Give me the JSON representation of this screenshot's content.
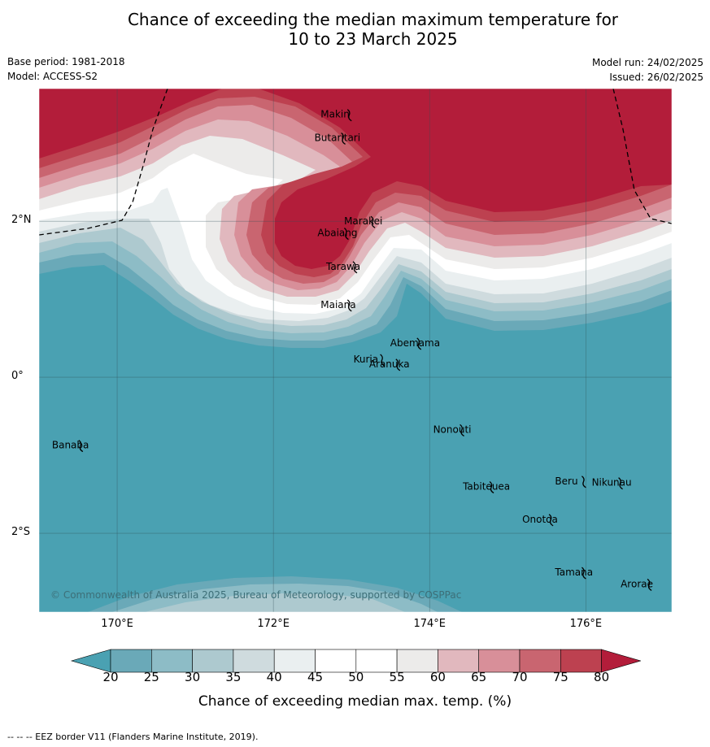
{
  "title_line1": "Chance of exceeding the median maximum temperature for",
  "title_line2": "10 to 23 March 2025",
  "base_period": "Base period: 1981-2018",
  "model": "Model: ACCESS-S2",
  "model_run": "Model run: 24/02/2025",
  "issued": "Issued: 26/02/2025",
  "copyright": "© Commonwealth of Australia 2025, Bureau of Meteorology, supported by COSPPac",
  "footer": "--  --  -- EEZ border V11 (Flanders Marine Institute, 2019).",
  "colorbar_title": "Chance of exceeding median max. temp. (%)",
  "map_extent": {
    "lon": [
      169.0,
      177.1
    ],
    "lat": [
      -3.01,
      3.7
    ]
  },
  "lat_ticks": [
    {
      "v": 2,
      "label": "2°N"
    },
    {
      "v": 0,
      "label": "0°"
    },
    {
      "v": -2,
      "label": "2°S"
    }
  ],
  "lon_ticks": [
    {
      "v": 170,
      "label": "170°E"
    },
    {
      "v": 172,
      "label": "172°E"
    },
    {
      "v": 174,
      "label": "174°E"
    },
    {
      "v": 176,
      "label": "176°E"
    }
  ],
  "colorbar": {
    "ticks": [
      "20",
      "25",
      "30",
      "35",
      "40",
      "45",
      "50",
      "55",
      "60",
      "65",
      "70",
      "75",
      "80"
    ],
    "colors": [
      "#6aa9b8",
      "#8dbcc6",
      "#adc9cf",
      "#cfdbde",
      "#eaeff0",
      "#ffffff",
      "#ffffff",
      "#ecebea",
      "#e1b8be",
      "#d88f99",
      "#c96570",
      "#bd4150"
    ],
    "under": "#4aa1b2",
    "over": "#b31d3a"
  },
  "islands": [
    {
      "name": "Makin",
      "lon": 172.98,
      "lat": 3.37
    },
    {
      "name": "Butaritari",
      "lon": 172.9,
      "lat": 3.07
    },
    {
      "name": "Marakei",
      "lon": 173.28,
      "lat": 2.0
    },
    {
      "name": "Abaiang",
      "lon": 172.94,
      "lat": 1.85
    },
    {
      "name": "Tarawa",
      "lon": 173.05,
      "lat": 1.42
    },
    {
      "name": "Maiana",
      "lon": 172.98,
      "lat": 0.93
    },
    {
      "name": "Abemama",
      "lon": 173.87,
      "lat": 0.44
    },
    {
      "name": "Kuria",
      "lon": 173.4,
      "lat": 0.23
    },
    {
      "name": "Aranuka",
      "lon": 173.6,
      "lat": 0.17
    },
    {
      "name": "Nonouti",
      "lon": 174.42,
      "lat": -0.67
    },
    {
      "name": "Banaba",
      "lon": 169.54,
      "lat": -0.87
    },
    {
      "name": "Tabiteuea",
      "lon": 174.8,
      "lat": -1.4
    },
    {
      "name": "Beru",
      "lon": 175.98,
      "lat": -1.33
    },
    {
      "name": "Nikunau",
      "lon": 176.45,
      "lat": -1.35
    },
    {
      "name": "Onotoa",
      "lon": 175.56,
      "lat": -1.82
    },
    {
      "name": "Tamana",
      "lon": 175.98,
      "lat": -2.5
    },
    {
      "name": "Arorae",
      "lon": 176.82,
      "lat": -2.65
    }
  ]
}
